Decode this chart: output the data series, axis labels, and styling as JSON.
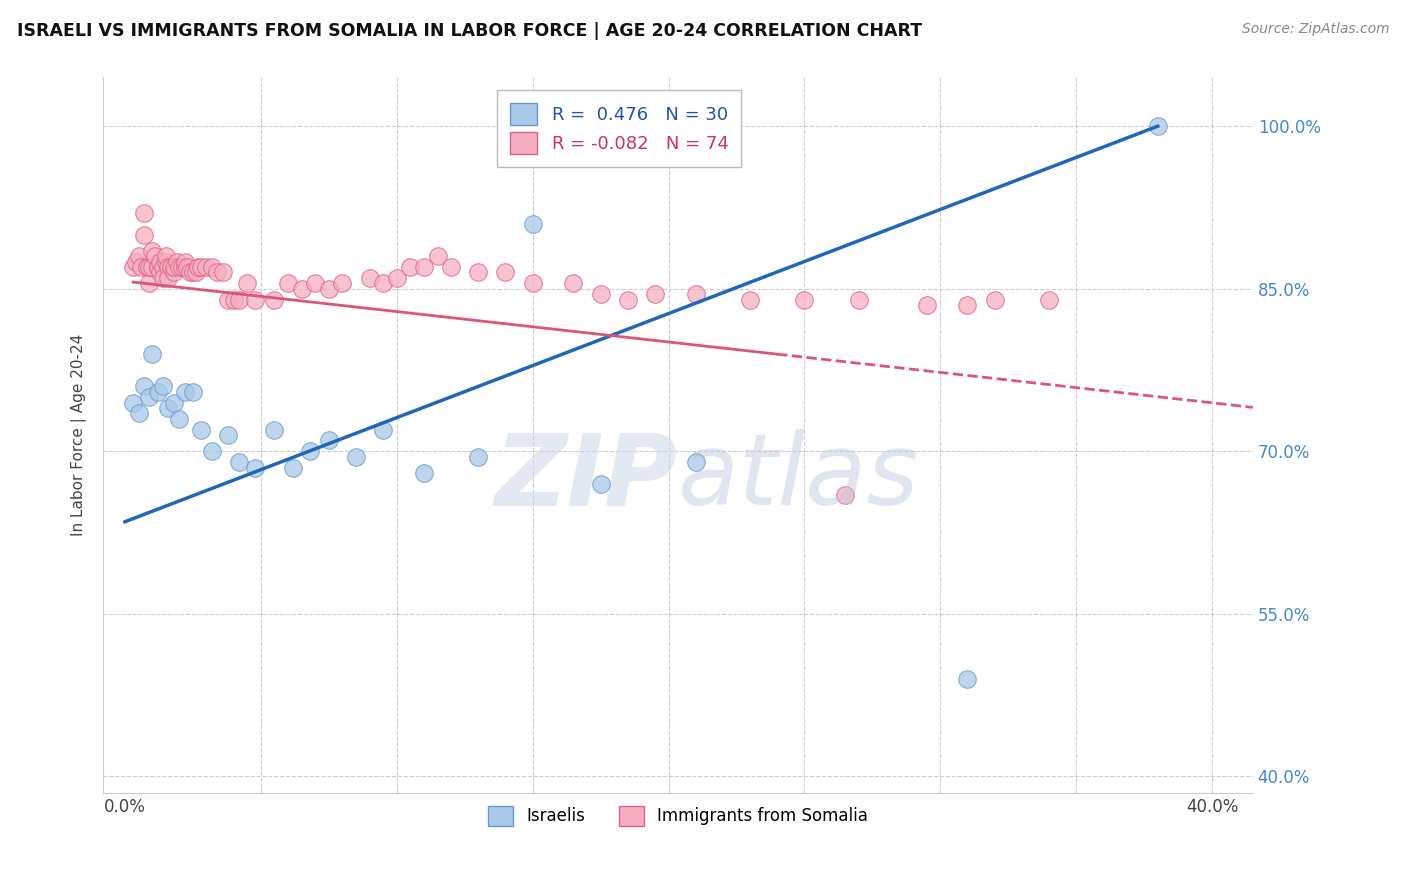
{
  "title": "ISRAELI VS IMMIGRANTS FROM SOMALIA IN LABOR FORCE | AGE 20-24 CORRELATION CHART",
  "source": "Source: ZipAtlas.com",
  "ylabel": "In Labor Force | Age 20-24",
  "xlim": [
    -0.008,
    0.415
  ],
  "ylim": [
    0.385,
    1.045
  ],
  "x_ticks": [
    0.0,
    0.05,
    0.1,
    0.15,
    0.2,
    0.25,
    0.3,
    0.35,
    0.4
  ],
  "x_tick_labels_show": [
    "0.0%",
    "40.0%"
  ],
  "y_ticks": [
    0.4,
    0.55,
    0.7,
    0.85,
    1.0
  ],
  "y_tick_labels": [
    "40.0%",
    "55.0%",
    "70.0%",
    "85.0%",
    "100.0%"
  ],
  "israeli_color": "#aac8e8",
  "somalia_color": "#f5afc0",
  "israeli_edge": "#6699cc",
  "somalia_edge": "#e06080",
  "trend_blue": "#2266bb",
  "trend_pink": "#dd5577",
  "legend_r_blue": "0.476",
  "legend_n_blue": "30",
  "legend_r_pink": "-0.082",
  "legend_n_pink": "74",
  "israeli_x": [
    0.003,
    0.005,
    0.007,
    0.009,
    0.01,
    0.012,
    0.014,
    0.016,
    0.018,
    0.02,
    0.022,
    0.025,
    0.028,
    0.032,
    0.038,
    0.042,
    0.048,
    0.055,
    0.062,
    0.068,
    0.075,
    0.085,
    0.095,
    0.11,
    0.13,
    0.15,
    0.175,
    0.21,
    0.31,
    0.38
  ],
  "israeli_y": [
    0.745,
    0.735,
    0.76,
    0.75,
    0.79,
    0.755,
    0.76,
    0.74,
    0.745,
    0.73,
    0.755,
    0.755,
    0.72,
    0.7,
    0.715,
    0.69,
    0.685,
    0.72,
    0.685,
    0.7,
    0.71,
    0.695,
    0.72,
    0.68,
    0.695,
    0.91,
    0.67,
    0.69,
    0.49,
    1.0
  ],
  "somalia_x": [
    0.003,
    0.004,
    0.005,
    0.006,
    0.007,
    0.007,
    0.008,
    0.009,
    0.009,
    0.01,
    0.01,
    0.011,
    0.012,
    0.012,
    0.013,
    0.013,
    0.014,
    0.014,
    0.015,
    0.015,
    0.016,
    0.016,
    0.017,
    0.018,
    0.018,
    0.019,
    0.02,
    0.021,
    0.022,
    0.022,
    0.023,
    0.024,
    0.025,
    0.026,
    0.027,
    0.028,
    0.03,
    0.032,
    0.034,
    0.036,
    0.038,
    0.04,
    0.042,
    0.045,
    0.048,
    0.055,
    0.06,
    0.065,
    0.07,
    0.075,
    0.08,
    0.09,
    0.095,
    0.1,
    0.105,
    0.11,
    0.115,
    0.12,
    0.13,
    0.14,
    0.15,
    0.165,
    0.175,
    0.185,
    0.195,
    0.21,
    0.23,
    0.25,
    0.27,
    0.295,
    0.32,
    0.34,
    0.265,
    0.31
  ],
  "somalia_y": [
    0.87,
    0.875,
    0.88,
    0.87,
    0.92,
    0.9,
    0.87,
    0.855,
    0.87,
    0.87,
    0.885,
    0.88,
    0.87,
    0.87,
    0.865,
    0.875,
    0.87,
    0.86,
    0.875,
    0.88,
    0.87,
    0.86,
    0.87,
    0.865,
    0.87,
    0.875,
    0.87,
    0.87,
    0.87,
    0.875,
    0.87,
    0.865,
    0.865,
    0.865,
    0.87,
    0.87,
    0.87,
    0.87,
    0.865,
    0.865,
    0.84,
    0.84,
    0.84,
    0.855,
    0.84,
    0.84,
    0.855,
    0.85,
    0.855,
    0.85,
    0.855,
    0.86,
    0.855,
    0.86,
    0.87,
    0.87,
    0.88,
    0.87,
    0.865,
    0.865,
    0.855,
    0.855,
    0.845,
    0.84,
    0.845,
    0.845,
    0.84,
    0.84,
    0.84,
    0.835,
    0.84,
    0.84,
    0.66,
    0.835
  ]
}
